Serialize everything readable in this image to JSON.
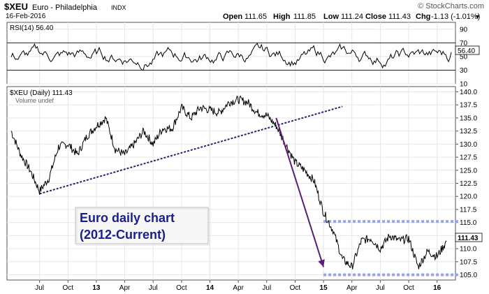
{
  "header": {
    "symbol": "$XEU",
    "name": "Euro - Philadelphia",
    "exchange": "INDX",
    "copyright": "© StockCharts.com",
    "date": "16-Feb-2016",
    "open_label": "Open",
    "open": "111.65",
    "high_label": "High",
    "high": "111.85",
    "low_label": "Low",
    "low": "111.24",
    "close_label": "Close",
    "close": "111.43",
    "chg_label": "Chg",
    "chg": "-1.13 (-1.01%)",
    "chg_arrow": "▼"
  },
  "colors": {
    "price": "#000000",
    "rsi": "#000000",
    "trend_line": "#1f2a6e",
    "arrow": "#5a1e78",
    "support_band": "#9aa2ea",
    "annotation_text": "#1a1e8a",
    "grid": "#e6e6e6"
  },
  "chart_data": [
    {
      "type": "line",
      "title": "RSI(14) 56.40",
      "indicator": "RSI(14)",
      "last_value": "56.40",
      "ylim": [
        10,
        100
      ],
      "y_ticks": [
        "90",
        "70",
        "50",
        "30",
        "10"
      ],
      "reference_lines": [
        70,
        30
      ],
      "grid": true
    },
    {
      "type": "line",
      "title": "$XEU (Daily) 111.43",
      "legend": [
        "$XEU (Daily) 111.43",
        "Volume undef"
      ],
      "last_value": "111.43",
      "ylim": [
        104,
        141
      ],
      "y_ticks": [
        "140.0",
        "137.5",
        "135.0",
        "132.5",
        "130.0",
        "127.5",
        "125.0",
        "122.5",
        "120.0",
        "117.5",
        "115.0",
        "112.5",
        "110.0",
        "107.5",
        "105.0"
      ],
      "x_ticks": [
        "Jul",
        "Oct",
        "13",
        "Apr",
        "Jul",
        "Oct",
        "14",
        "Apr",
        "Jul",
        "Oct",
        "15",
        "Apr",
        "Jul",
        "Oct",
        "16"
      ],
      "x_range": [
        "2012-04",
        "2016-02"
      ],
      "grid": true,
      "series": [
        {
          "x": [
            "2012-04",
            "2012-05",
            "2012-06",
            "2012-07",
            "2012-08",
            "2012-09",
            "2012-10",
            "2012-11",
            "2012-12",
            "2013-01",
            "2013-02",
            "2013-03",
            "2013-04",
            "2013-05",
            "2013-06",
            "2013-07",
            "2013-08",
            "2013-09",
            "2013-10",
            "2013-11",
            "2013-12",
            "2014-01",
            "2014-02",
            "2014-03",
            "2014-04",
            "2014-05",
            "2014-06",
            "2014-07",
            "2014-08",
            "2014-09",
            "2014-10",
            "2014-11",
            "2014-12",
            "2015-01",
            "2015-02",
            "2015-03",
            "2015-04",
            "2015-05",
            "2015-06",
            "2015-07",
            "2015-08",
            "2015-09",
            "2015-10",
            "2015-11",
            "2015-12",
            "2016-01",
            "2016-02"
          ],
          "values": [
            132.5,
            128.0,
            125.0,
            121.0,
            123.5,
            129.5,
            130.0,
            128.0,
            131.5,
            133.5,
            135.0,
            129.0,
            128.0,
            130.0,
            132.5,
            130.0,
            133.0,
            133.0,
            137.0,
            135.0,
            137.0,
            136.5,
            136.0,
            138.0,
            138.5,
            138.0,
            136.0,
            135.5,
            133.5,
            130.0,
            126.5,
            125.0,
            123.0,
            117.0,
            113.5,
            108.0,
            106.5,
            111.5,
            112.0,
            110.0,
            112.5,
            111.5,
            112.0,
            106.5,
            109.5,
            108.5,
            111.43
          ]
        }
      ],
      "annotations": {
        "label_line1": "Euro daily chart",
        "label_line2": "(2012-Current)",
        "trend_line": {
          "x": [
            "2012-07",
            "2015-03"
          ],
          "y": [
            120.5,
            137.2
          ]
        },
        "arrow": {
          "x": [
            "2014-08",
            "2015-01"
          ],
          "y": [
            135.0,
            106.5
          ]
        },
        "support_band": {
          "x": [
            "2015-01",
            "2016-01"
          ],
          "y": [
            105.0,
            115.2
          ]
        }
      }
    }
  ]
}
